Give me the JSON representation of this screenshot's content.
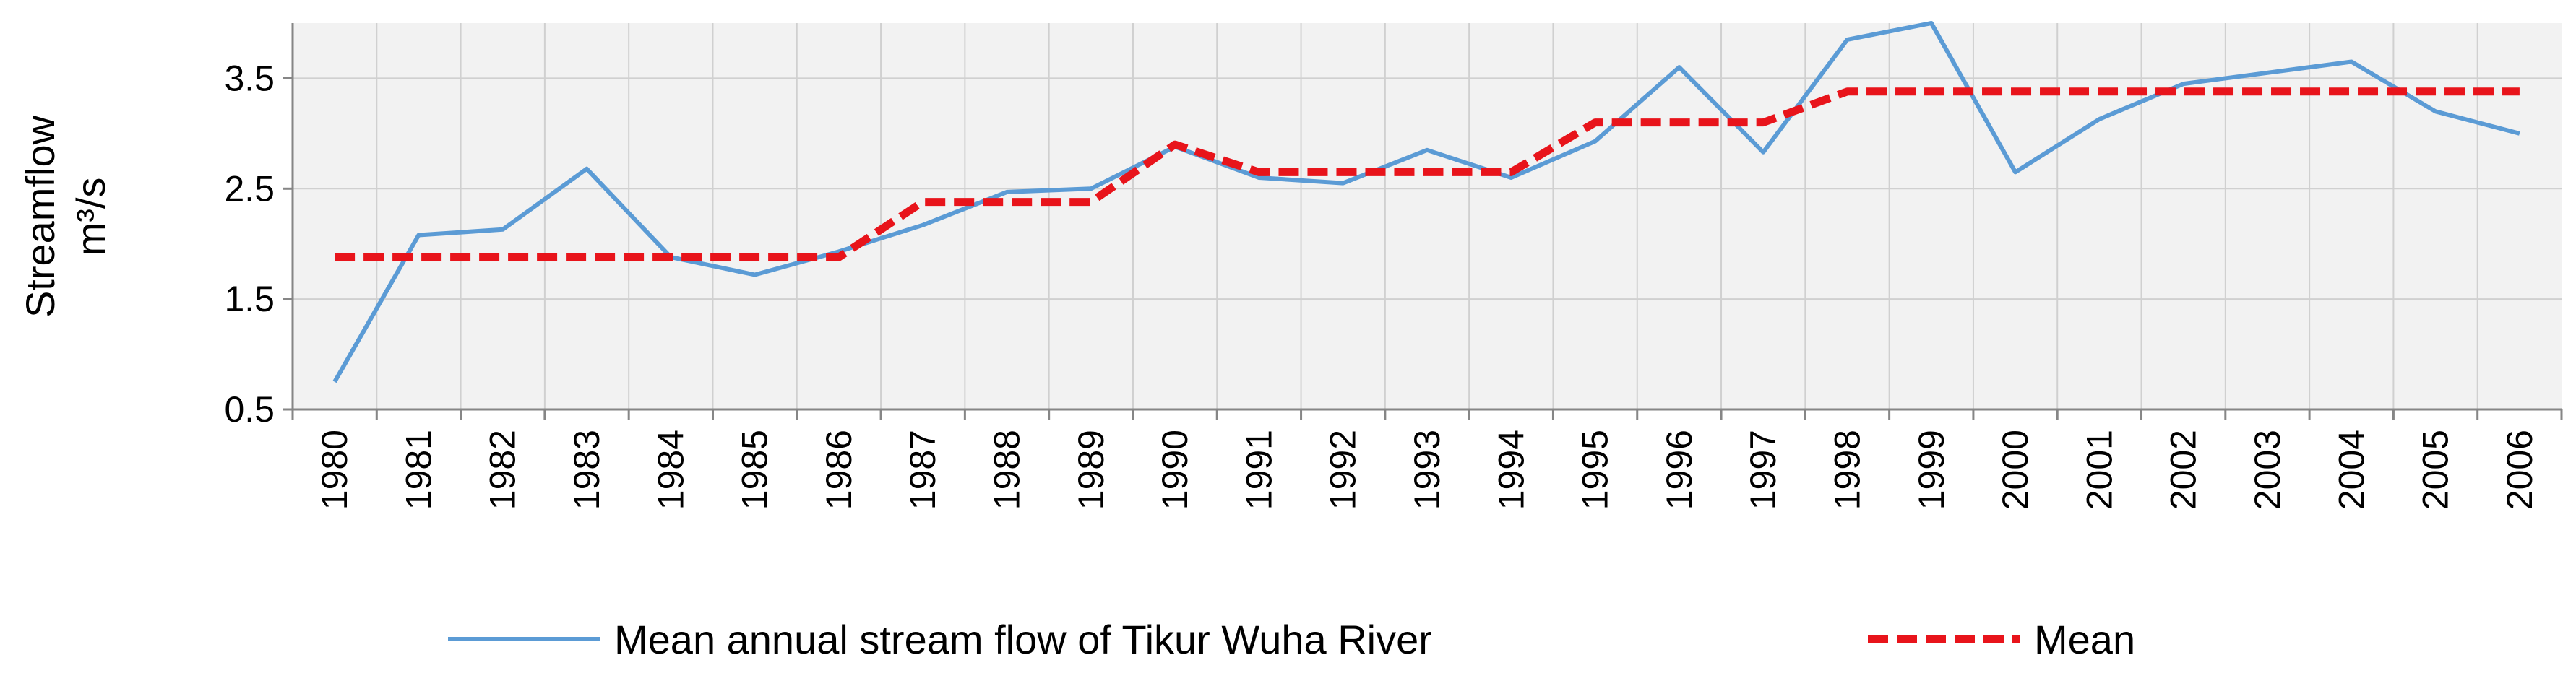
{
  "chart_data": {
    "type": "line",
    "title": "",
    "xlabel": "",
    "ylabel_line1": "Streamflow",
    "ylabel_line2": "m³/s",
    "ylim": [
      0.5,
      4.0
    ],
    "yticks": [
      "0.5",
      "1.5",
      "2.5",
      "3.5"
    ],
    "ytick_values": [
      0.5,
      1.5,
      2.5,
      3.5
    ],
    "grid": true,
    "legend_position": "bottom",
    "x": [
      "1980",
      "1981",
      "1982",
      "1983",
      "1984",
      "1985",
      "1986",
      "1987",
      "1988",
      "1989",
      "1990",
      "1991",
      "1992",
      "1993",
      "1994",
      "1995",
      "1996",
      "1997",
      "1998",
      "1999",
      "2000",
      "2001",
      "2002",
      "2003",
      "2004",
      "2005",
      "2006"
    ],
    "series": [
      {
        "name": "Mean annual stream flow of Tikur Wuha River",
        "color": "#5b9bd5",
        "style": "solid",
        "values": [
          0.75,
          2.08,
          2.13,
          2.68,
          1.88,
          1.72,
          1.93,
          2.17,
          2.47,
          2.5,
          2.88,
          2.6,
          2.55,
          2.85,
          2.6,
          2.93,
          3.6,
          2.83,
          3.85,
          4.0,
          2.65,
          3.13,
          3.45,
          3.55,
          3.65,
          3.2,
          3.0
        ]
      },
      {
        "name": "Mean",
        "color": "#e8141b",
        "style": "dashed",
        "values": [
          1.88,
          1.88,
          1.88,
          1.88,
          1.88,
          1.88,
          1.88,
          2.38,
          2.38,
          2.38,
          2.9,
          2.65,
          2.65,
          2.65,
          2.65,
          3.1,
          3.1,
          3.1,
          3.38,
          3.38,
          3.38,
          3.38,
          3.38,
          3.38,
          3.38,
          3.38,
          3.38
        ]
      }
    ]
  }
}
